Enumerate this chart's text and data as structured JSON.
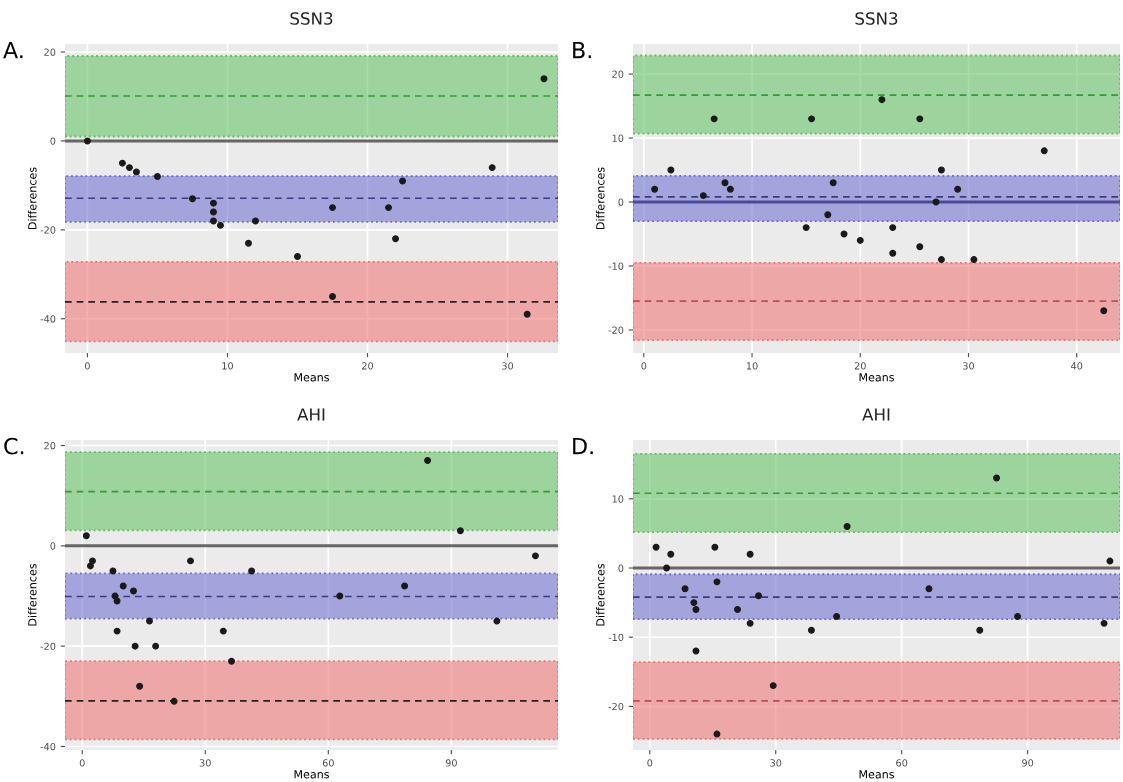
{
  "chart_data": [
    {
      "type": "scatter",
      "title": "SSN3",
      "xlabel": "Means",
      "ylabel": "Differences",
      "annotations": [
        "A."
      ],
      "color": "#1a1a1a",
      "marker": "circle",
      "grid": true,
      "x": [
        32.6,
        0,
        2.5,
        3.0,
        3.5,
        5.0,
        7.5,
        9.0,
        9.0,
        9.0,
        9.5,
        12.0,
        11.5,
        15.0,
        17.5,
        17.5,
        21.5,
        22.5,
        22.0,
        28.9,
        31.4
      ],
      "values": [
        14,
        0,
        -5,
        -6,
        -7,
        -8,
        -13,
        -14,
        -16,
        -18,
        -19,
        -18,
        -23,
        -26,
        -15,
        -35,
        -15,
        -9,
        -22,
        -6,
        -39
      ],
      "xlim": [
        -1.6,
        33.6
      ],
      "ylim": [
        -47.7,
        21.8
      ],
      "xticks": [
        0,
        10,
        20,
        30
      ],
      "yticks": [
        -40,
        -20,
        0,
        20
      ],
      "bands": [
        {
          "axis": "y",
          "from": 1.0,
          "to": 19.1,
          "label": null,
          "color": "#5cbf5c"
        },
        {
          "axis": "y",
          "from": -18.2,
          "to": -7.9,
          "label": null,
          "color": "#6a6ad0"
        },
        {
          "axis": "y",
          "from": -45.1,
          "to": -27.2,
          "label": null,
          "color": "#f07070"
        }
      ],
      "ref_lines": [
        {
          "axis": "y",
          "value": 0,
          "label": null,
          "color": "#666666",
          "line_style": "solid"
        },
        {
          "axis": "y",
          "value": 10.1,
          "label": null,
          "color": "#2e9e2e",
          "line_style": "dashed"
        },
        {
          "axis": "y",
          "value": -12.9,
          "label": null,
          "color": "#3a3a80",
          "line_style": "dashed"
        },
        {
          "axis": "y",
          "value": -36.2,
          "label": null,
          "color": "#222222",
          "line_style": "dashed"
        }
      ]
    },
    {
      "type": "scatter",
      "title": "SSN3",
      "xlabel": "Means",
      "ylabel": "Differences",
      "annotations": [
        "B."
      ],
      "color": "#1a1a1a",
      "marker": "circle",
      "grid": true,
      "x": [
        1.0,
        2.5,
        5.5,
        6.5,
        7.5,
        8.0,
        15.0,
        15.5,
        17.0,
        17.5,
        18.5,
        20.0,
        22.0,
        23.0,
        23.0,
        25.5,
        25.5,
        27.0,
        27.5,
        27.5,
        29.0,
        30.5,
        37.0,
        42.5
      ],
      "values": [
        2,
        5,
        1,
        13,
        3,
        2,
        -4,
        13,
        -2,
        3,
        -5,
        -6,
        16,
        -4,
        -8,
        13,
        -7,
        0,
        5,
        -9,
        2,
        -9,
        8,
        -17
      ],
      "xlim": [
        -1.0,
        44.0
      ],
      "ylim": [
        -23.6,
        24.7
      ],
      "xticks": [
        0,
        10,
        20,
        30,
        40
      ],
      "yticks": [
        -20,
        -10,
        0,
        10,
        20
      ],
      "bands": [
        {
          "axis": "y",
          "from": 10.7,
          "to": 22.9,
          "label": null,
          "color": "#5cbf5c"
        },
        {
          "axis": "y",
          "from": -3.0,
          "to": 4.1,
          "label": null,
          "color": "#6a6ad0"
        },
        {
          "axis": "y",
          "from": -21.6,
          "to": -9.5,
          "label": null,
          "color": "#f07070"
        }
      ],
      "ref_lines": [
        {
          "axis": "y",
          "value": 0,
          "label": null,
          "color": "#4a4a9a",
          "line_style": "solid"
        },
        {
          "axis": "y",
          "value": 16.7,
          "label": null,
          "color": "#2e9e2e",
          "line_style": "dashed"
        },
        {
          "axis": "y",
          "value": 0.8,
          "label": null,
          "color": "#3a3a80",
          "line_style": "dashed"
        },
        {
          "axis": "y",
          "value": -15.5,
          "label": null,
          "color": "#b85050",
          "line_style": "dashed"
        }
      ]
    },
    {
      "type": "scatter",
      "title": "AHI",
      "xlabel": "Means",
      "ylabel": "Differences",
      "annotations": [
        "C."
      ],
      "color": "#1a1a1a",
      "marker": "circle",
      "grid": true,
      "x": [
        1.0,
        2.0,
        2.5,
        7.5,
        8.0,
        8.5,
        8.5,
        10.0,
        12.5,
        12.9,
        14.0,
        16.4,
        17.9,
        22.4,
        26.4,
        34.4,
        36.4,
        41.3,
        62.8,
        78.6,
        84.2,
        92.2,
        101.1,
        110.5
      ],
      "values": [
        2,
        -4,
        -3,
        -5,
        -10,
        -11,
        -17,
        -8,
        -9,
        -20,
        -28,
        -15,
        -20,
        -31,
        -3,
        -17,
        -23,
        -5,
        -10,
        -8,
        17,
        3,
        -15,
        -2
      ],
      "xlim": [
        -4.2,
        116
      ],
      "ylim": [
        -40.7,
        21.1
      ],
      "xticks": [
        0,
        30,
        60,
        90
      ],
      "yticks": [
        -40,
        -20,
        0,
        20
      ],
      "bands": [
        {
          "axis": "y",
          "from": 3.1,
          "to": 18.7,
          "label": null,
          "color": "#5cbf5c"
        },
        {
          "axis": "y",
          "from": -14.5,
          "to": -5.5,
          "label": null,
          "color": "#6a6ad0"
        },
        {
          "axis": "y",
          "from": -38.6,
          "to": -23.0,
          "label": null,
          "color": "#f07070"
        }
      ],
      "ref_lines": [
        {
          "axis": "y",
          "value": 0,
          "label": null,
          "color": "#666666",
          "line_style": "solid"
        },
        {
          "axis": "y",
          "value": 10.8,
          "label": null,
          "color": "#2e9e2e",
          "line_style": "dashed"
        },
        {
          "axis": "y",
          "value": -10.1,
          "label": null,
          "color": "#3a3a80",
          "line_style": "dashed"
        },
        {
          "axis": "y",
          "value": -30.9,
          "label": null,
          "color": "#222222",
          "line_style": "dashed"
        }
      ]
    },
    {
      "type": "scatter",
      "title": "AHI",
      "xlabel": "Means",
      "ylabel": "Differences",
      "annotations": [
        "D."
      ],
      "color": "#1a1a1a",
      "marker": "circle",
      "grid": true,
      "x": [
        1.5,
        5.0,
        4.0,
        8.4,
        10.5,
        11.0,
        11.0,
        15.5,
        16.0,
        16.0,
        20.9,
        23.9,
        23.9,
        25.9,
        29.4,
        38.5,
        44.5,
        47.0,
        66.5,
        78.6,
        82.6,
        87.6,
        108.2,
        109.6
      ],
      "values": [
        3,
        2,
        0,
        -3,
        -5,
        -6,
        -12,
        3,
        -2,
        -24,
        -6,
        2,
        -8,
        -4,
        -17,
        -9,
        -7,
        6,
        -3,
        -9,
        13,
        -7,
        -8,
        1
      ],
      "xlim": [
        -4,
        112
      ],
      "ylim": [
        -26.3,
        18.5
      ],
      "xticks": [
        0,
        30,
        60,
        90
      ],
      "yticks": [
        -20,
        -10,
        0,
        10
      ],
      "bands": [
        {
          "axis": "y",
          "from": 5.2,
          "to": 16.5,
          "label": null,
          "color": "#5cbf5c"
        },
        {
          "axis": "y",
          "from": -7.4,
          "to": -0.9,
          "label": null,
          "color": "#6a6ad0"
        },
        {
          "axis": "y",
          "from": -24.7,
          "to": -13.6,
          "label": null,
          "color": "#f07070"
        }
      ],
      "ref_lines": [
        {
          "axis": "y",
          "value": 0,
          "label": null,
          "color": "#666666",
          "line_style": "solid"
        },
        {
          "axis": "y",
          "value": 10.8,
          "label": null,
          "color": "#2e9e2e",
          "line_style": "dashed"
        },
        {
          "axis": "y",
          "value": -4.2,
          "label": null,
          "color": "#3a3a80",
          "line_style": "dashed"
        },
        {
          "axis": "y",
          "value": -19.2,
          "label": null,
          "color": "#b85050",
          "line_style": "dashed"
        }
      ]
    }
  ]
}
